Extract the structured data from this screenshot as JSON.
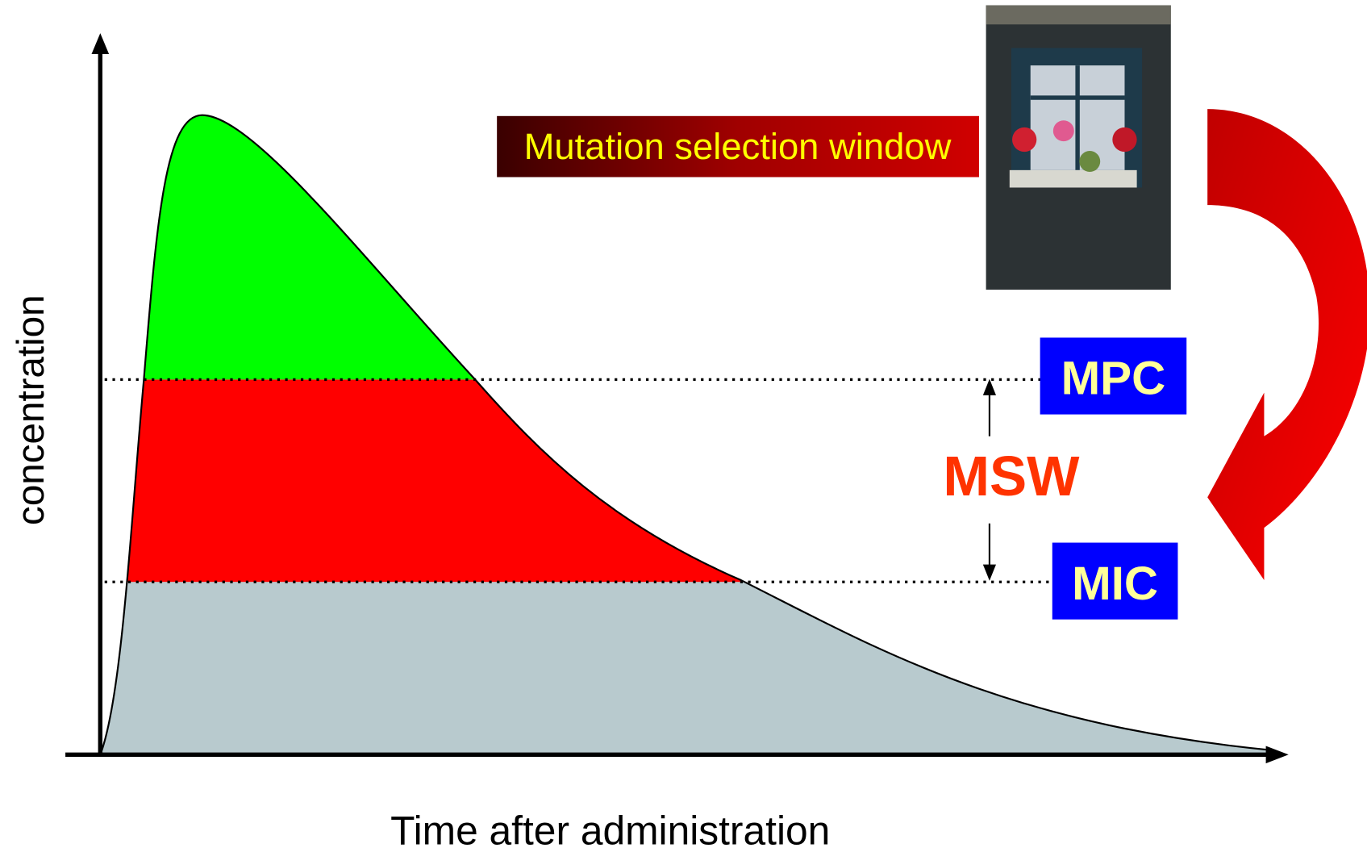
{
  "diagram": {
    "banner": "Mutation selection window",
    "upper_label": "MPC",
    "window_label": "MSW",
    "lower_label": "MIC",
    "y_axis_label": "concentration",
    "x_axis_label": "Time after administration"
  }
}
